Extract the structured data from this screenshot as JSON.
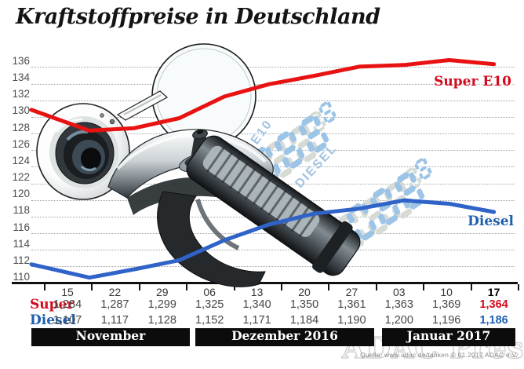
{
  "title": "Kraftstoffpreise in Deutschland",
  "source": "Quelle: www.adac.de/tanken  © 01.2017 ADAC e.V.",
  "watermark": "ADAC Presse",
  "pump_display": {
    "super_label": "SUPER E10",
    "diesel_label": "DIESEL",
    "super_digits": "088",
    "super_sup": "8",
    "diesel_digits": "088",
    "diesel_sup": "8",
    "digit_color": "#9cc4e6",
    "ghost_color": "#d7dbd5",
    "label_color": "#a2c4e2"
  },
  "chart_data": {
    "type": "line",
    "title": "Kraftstoffpreise in Deutschland",
    "categories": [
      "15",
      "22",
      "29",
      "06",
      "13",
      "20",
      "27",
      "03",
      "10",
      "17"
    ],
    "highlight_column": 9,
    "yticks": [
      136,
      134,
      132,
      130,
      128,
      126,
      124,
      122,
      120,
      118,
      116,
      114,
      112,
      110
    ],
    "ylim": [
      110,
      136
    ],
    "grid": "dotted-horizontal",
    "legend_position": "inline-right",
    "months": [
      {
        "label": "November",
        "columns": [
          0,
          2
        ]
      },
      {
        "label": "Dezember 2016",
        "columns": [
          3,
          6
        ]
      },
      {
        "label": "Januar 2017",
        "columns": [
          7,
          9
        ]
      }
    ],
    "series": [
      {
        "name": "Super",
        "line_label": "Super E10",
        "color": "#e81212",
        "label_color": "#d40a1e",
        "values": [
          128.4,
          128.7,
          129.9,
          132.5,
          134.0,
          135.0,
          136.1,
          136.3,
          136.9,
          136.4
        ],
        "display_values": [
          "1,284",
          "1,287",
          "1,299",
          "1,325",
          "1,340",
          "1,350",
          "1,361",
          "1,363",
          "1,369",
          "1,364"
        ],
        "lead_in_estimate": 130.9
      },
      {
        "name": "Diesel",
        "line_label": "Diesel",
        "color": "#2f63c8",
        "label_color": "#1e5fae",
        "values": [
          110.7,
          111.7,
          112.8,
          115.2,
          117.1,
          118.4,
          119.0,
          120.0,
          119.6,
          118.6
        ],
        "display_values": [
          "1,107",
          "1,117",
          "1,128",
          "1,152",
          "1,171",
          "1,184",
          "1,190",
          "1,200",
          "1,196",
          "1,186"
        ],
        "lead_in_estimate": 112.3
      }
    ]
  }
}
